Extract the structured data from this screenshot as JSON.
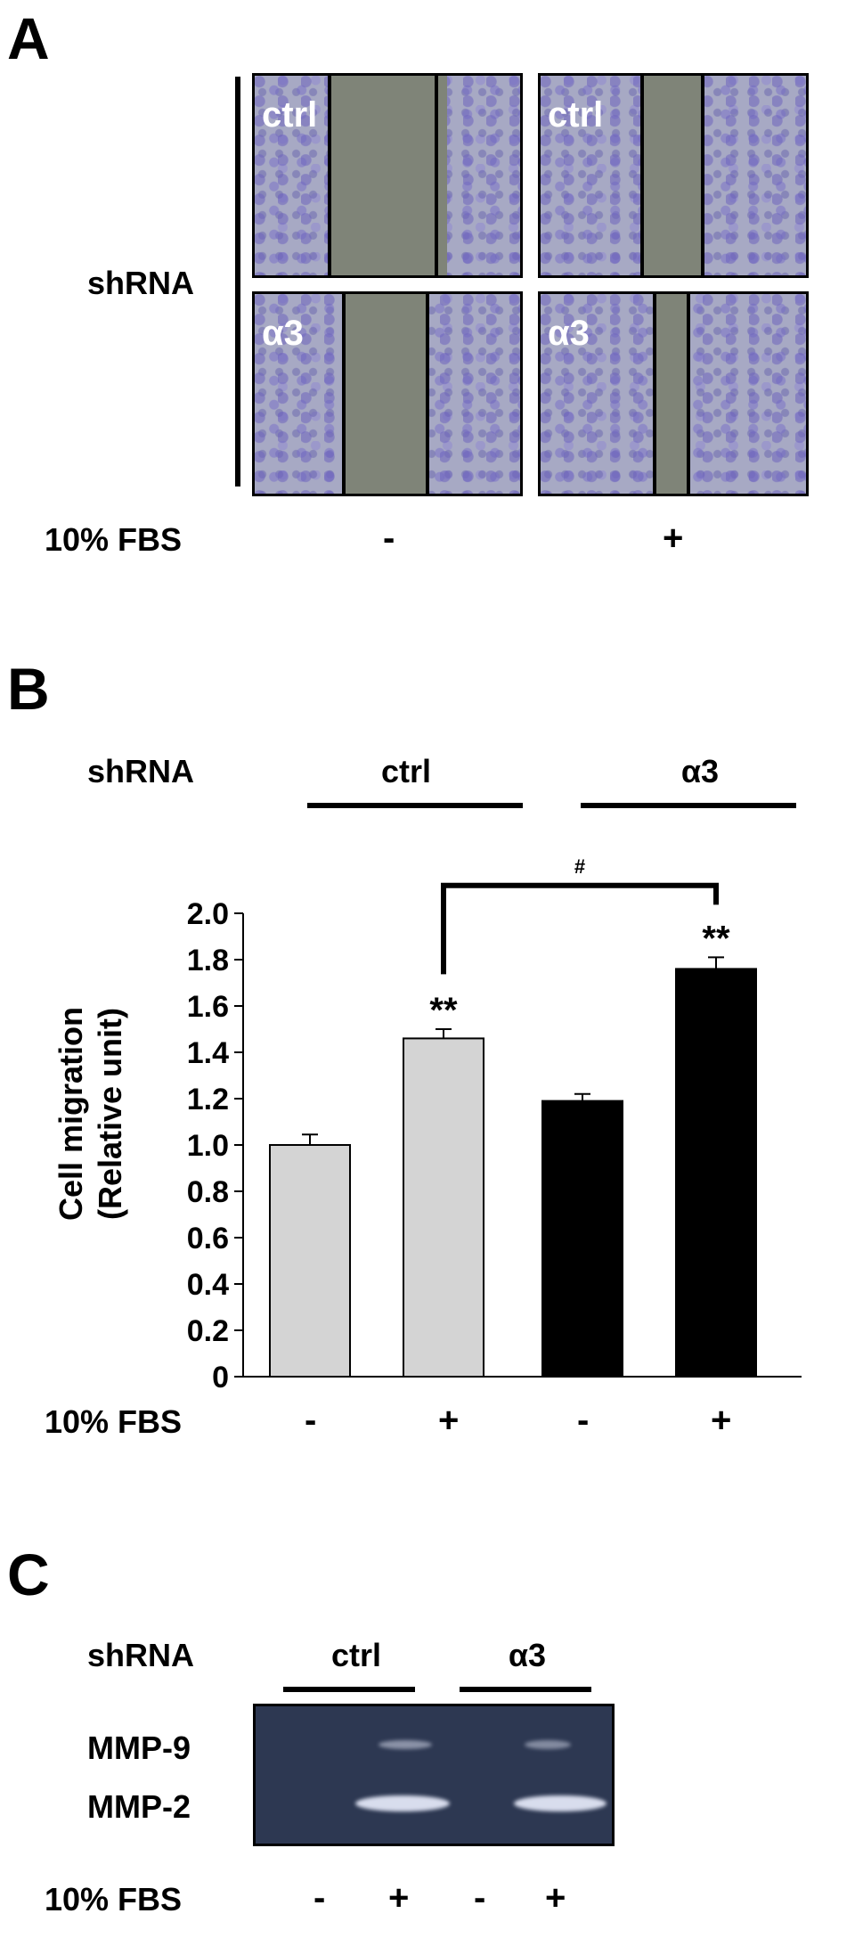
{
  "panel_a": {
    "letter": "A",
    "shrna_label": "shRNA",
    "fbs_label": "10% FBS",
    "fbs_conditions": [
      "-",
      "+"
    ],
    "images": [
      {
        "label": "ctrl"
      },
      {
        "label": "ctrl"
      },
      {
        "label": "α3"
      },
      {
        "label": "α3"
      }
    ]
  },
  "panel_b": {
    "letter": "B",
    "shrna_label": "shRNA",
    "groups": [
      "ctrl",
      "α3"
    ],
    "fbs_label": "10% FBS",
    "fbs_conditions": [
      "-",
      "+",
      "-",
      "+"
    ],
    "comparison_mark": "#"
  },
  "chart_data": {
    "type": "bar",
    "ylabel": "Cell migration\n(Relative unit)",
    "ylim": [
      0,
      2.0
    ],
    "yticks": [
      "0",
      "0.2",
      "0.4",
      "0.6",
      "0.8",
      "1.0",
      "1.2",
      "1.4",
      "1.6",
      "1.8",
      "2.0"
    ],
    "categories": [
      "ctrl -",
      "ctrl +",
      "α3 -",
      "α3 +"
    ],
    "values": [
      1.0,
      1.46,
      1.19,
      1.76
    ],
    "errors": [
      0.045,
      0.04,
      0.03,
      0.05
    ],
    "colors": [
      "#d4d4d4",
      "#d4d4d4",
      "#000000",
      "#000000"
    ],
    "significance": [
      "",
      "**",
      "",
      "**"
    ]
  },
  "panel_c": {
    "letter": "C",
    "shrna_label": "shRNA",
    "groups": [
      "ctrl",
      "α3"
    ],
    "bands": [
      "MMP-9",
      "MMP-2"
    ],
    "fbs_label": "10% FBS",
    "fbs_conditions": [
      "-",
      "+",
      "-",
      "+"
    ]
  }
}
